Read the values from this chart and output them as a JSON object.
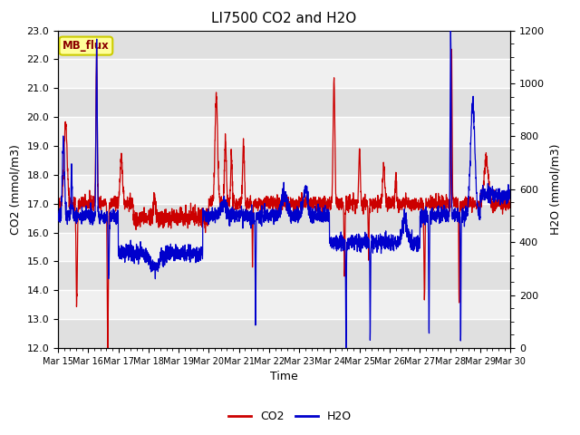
{
  "title": "LI7500 CO2 and H2O",
  "xlabel": "Time",
  "ylabel_left": "CO2 (mmol/m3)",
  "ylabel_right": "H2O (mmol/m3)",
  "ylim_left": [
    12.0,
    23.0
  ],
  "ylim_right": [
    0,
    1200
  ],
  "yticks_left": [
    12.0,
    13.0,
    14.0,
    15.0,
    16.0,
    17.0,
    18.0,
    19.0,
    20.0,
    21.0,
    22.0,
    23.0
  ],
  "yticks_right": [
    0,
    200,
    400,
    600,
    800,
    1000,
    1200
  ],
  "xtick_labels": [
    "Mar 15",
    "Mar 16",
    "Mar 17",
    "Mar 18",
    "Mar 19",
    "Mar 20",
    "Mar 21",
    "Mar 22",
    "Mar 23",
    "Mar 24",
    "Mar 25",
    "Mar 26",
    "Mar 27",
    "Mar 28",
    "Mar 29",
    "Mar 30"
  ],
  "co2_color": "#cc0000",
  "h2o_color": "#0000cc",
  "fig_bg_color": "#ffffff",
  "plot_bg_color_light": "#f0f0f0",
  "plot_bg_color_dark": "#e0e0e0",
  "grid_color": "#ffffff",
  "label_box_color": "#ffff99",
  "label_box_edge": "#cccc00",
  "label_text": "MB_flux",
  "legend_entries": [
    "CO2",
    "H2O"
  ],
  "title_fontsize": 11,
  "axis_label_fontsize": 9,
  "tick_fontsize": 8,
  "n_points": 3000,
  "seed": 42
}
